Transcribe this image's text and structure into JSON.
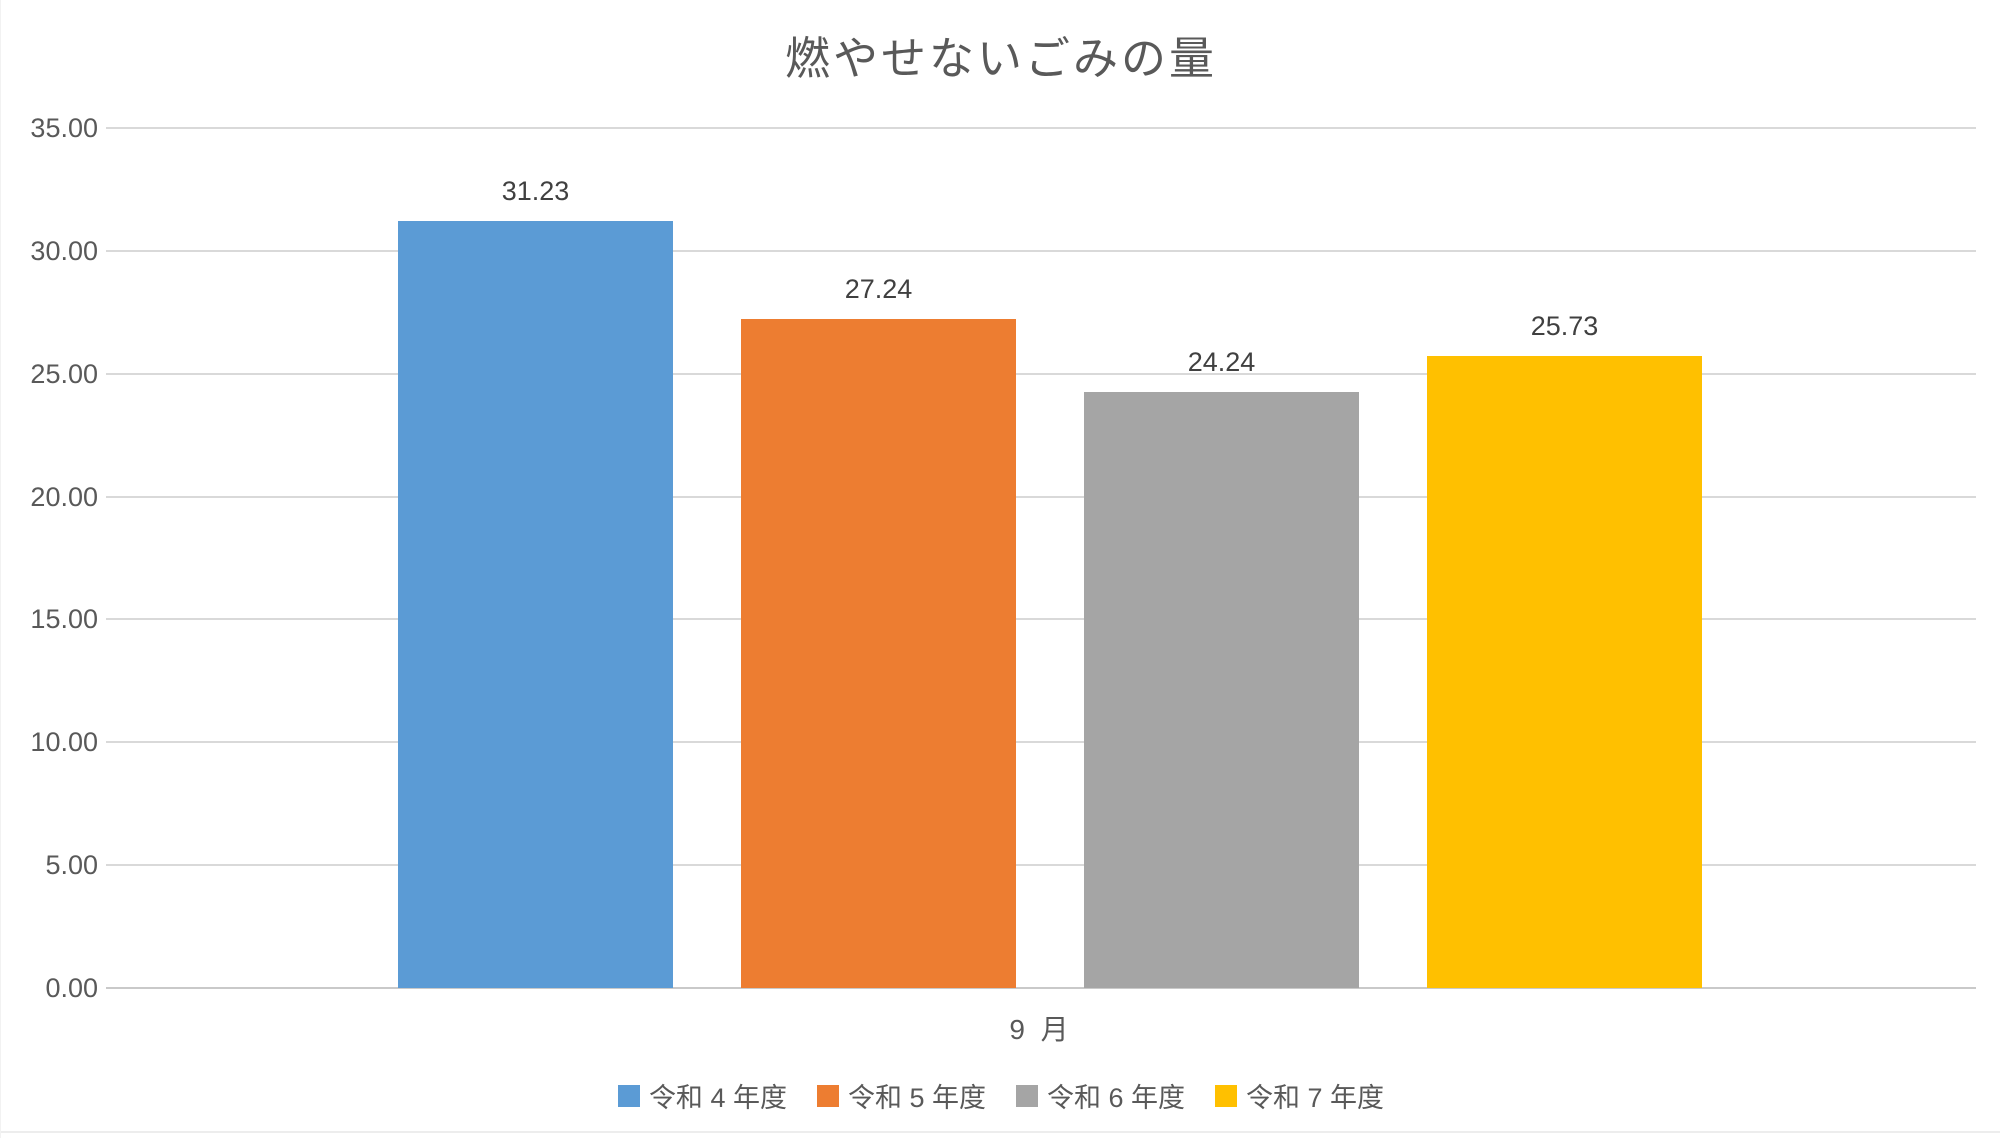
{
  "page": {
    "background": "#ffffff"
  },
  "chart_data": {
    "type": "bar",
    "title": "燃やせないごみの量",
    "xlabel": "",
    "ylabel": "",
    "categories": [
      "9 月"
    ],
    "series": [
      {
        "name": "令和 4 年度",
        "values": [
          31.23
        ],
        "data_label": "31.23",
        "color": "#5B9BD5"
      },
      {
        "name": "令和 5 年度",
        "values": [
          27.24
        ],
        "data_label": "27.24",
        "color": "#ED7D31"
      },
      {
        "name": "令和 6 年度",
        "values": [
          24.24
        ],
        "data_label": "24.24",
        "color": "#A5A5A5"
      },
      {
        "name": "令和 7 年度",
        "values": [
          25.73
        ],
        "data_label": "25.73",
        "color": "#FFC000"
      }
    ],
    "ylim": [
      0,
      35
    ],
    "yticks": [
      0,
      5,
      10,
      15,
      20,
      25,
      30,
      35
    ],
    "ytick_labels": [
      "0.00",
      "5.00",
      "10.00",
      "15.00",
      "20.00",
      "25.00",
      "30.00",
      "35.00"
    ],
    "grid": true,
    "legend_position": "bottom",
    "colors": {
      "grid": "#D9D9D9",
      "axis_text": "#595959",
      "data_label": "#404040",
      "title": "#595959"
    }
  }
}
